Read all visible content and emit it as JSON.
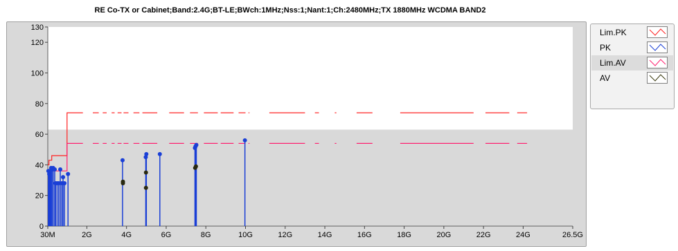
{
  "chart_data": {
    "type": "line",
    "title": "RE Co-TX or Cabinet;Band:2.4G;BT-LE;BWch:1MHz;Nss:1;Nant:1;Ch:2480MHz;TX 1880MHz WCDMA BAND2",
    "xlabel": "",
    "ylabel": "",
    "xlim": [
      0.03,
      26.5
    ],
    "ylim": [
      0,
      130
    ],
    "x_ticks": [
      {
        "value": 0.03,
        "label": "30M"
      },
      {
        "value": 2,
        "label": "2G"
      },
      {
        "value": 4,
        "label": "4G"
      },
      {
        "value": 6,
        "label": "6G"
      },
      {
        "value": 8,
        "label": "8G"
      },
      {
        "value": 10,
        "label": "10G"
      },
      {
        "value": 12,
        "label": "12G"
      },
      {
        "value": 14,
        "label": "14G"
      },
      {
        "value": 16,
        "label": "16G"
      },
      {
        "value": 18,
        "label": "18G"
      },
      {
        "value": 20,
        "label": "20G"
      },
      {
        "value": 22,
        "label": "22G"
      },
      {
        "value": 24,
        "label": "24G"
      },
      {
        "value": 26.5,
        "label": "26.5G"
      }
    ],
    "y_ticks": [
      {
        "value": 0,
        "label": "0"
      },
      {
        "value": 20,
        "label": "20"
      },
      {
        "value": 40,
        "label": "40"
      },
      {
        "value": 60,
        "label": "60"
      },
      {
        "value": 80,
        "label": "80"
      },
      {
        "value": 100,
        "label": "100"
      },
      {
        "value": 120,
        "label": "120"
      },
      {
        "value": 130,
        "label": "130"
      }
    ],
    "grid": true,
    "legend_position": "right",
    "series": [
      {
        "name": "Lim.PK",
        "color": "#ff2020",
        "style": "segments",
        "segments": [
          [
            [
              0.03,
              40
            ],
            [
              0.09,
              40
            ],
            [
              0.09,
              43
            ],
            [
              0.23,
              43
            ],
            [
              0.23,
              46
            ],
            [
              1.0,
              46
            ],
            [
              1.0,
              74
            ],
            [
              1.8,
              74
            ]
          ],
          [
            [
              2.3,
              74
            ],
            [
              2.6,
              74
            ]
          ],
          [
            [
              2.8,
              74
            ],
            [
              3.0,
              74
            ]
          ],
          [
            [
              3.25,
              74
            ],
            [
              3.4,
              74
            ]
          ],
          [
            [
              3.55,
              74
            ],
            [
              3.75,
              74
            ]
          ],
          [
            [
              3.85,
              74
            ],
            [
              4.1,
              74
            ]
          ],
          [
            [
              4.35,
              74
            ],
            [
              4.65,
              74
            ]
          ],
          [
            [
              4.8,
              74
            ],
            [
              5.55,
              74
            ]
          ],
          [
            [
              6.15,
              74
            ],
            [
              6.9,
              74
            ]
          ],
          [
            [
              7.2,
              74
            ],
            [
              7.6,
              74
            ]
          ],
          [
            [
              7.9,
              74
            ],
            [
              8.6,
              74
            ]
          ],
          [
            [
              8.75,
              74
            ],
            [
              9.4,
              74
            ]
          ],
          [
            [
              9.65,
              74
            ],
            [
              10.0,
              74
            ]
          ],
          [
            [
              10.15,
              74
            ],
            [
              10.2,
              74
            ]
          ],
          [
            [
              11.2,
              74
            ],
            [
              13.0,
              74
            ]
          ],
          [
            [
              13.5,
              74
            ],
            [
              13.7,
              74
            ]
          ],
          [
            [
              14.5,
              74
            ],
            [
              14.58,
              74
            ]
          ],
          [
            [
              15.6,
              74
            ],
            [
              16.4,
              74
            ]
          ],
          [
            [
              17.8,
              74
            ],
            [
              21.5,
              74
            ]
          ],
          [
            [
              22.1,
              74
            ],
            [
              23.3,
              74
            ]
          ],
          [
            [
              23.7,
              74
            ],
            [
              24.2,
              74
            ]
          ]
        ]
      },
      {
        "name": "Lim.AV",
        "color": "#ff2070",
        "style": "segments",
        "segments": [
          [
            [
              0.03,
              30
            ],
            [
              0.09,
              30
            ],
            [
              0.09,
              33
            ],
            [
              0.23,
              33
            ],
            [
              0.23,
              36
            ],
            [
              1.0,
              36
            ],
            [
              1.0,
              54
            ],
            [
              1.8,
              54
            ]
          ],
          [
            [
              2.3,
              54
            ],
            [
              2.6,
              54
            ]
          ],
          [
            [
              2.8,
              54
            ],
            [
              3.0,
              54
            ]
          ],
          [
            [
              3.25,
              54
            ],
            [
              3.4,
              54
            ]
          ],
          [
            [
              3.55,
              54
            ],
            [
              3.75,
              54
            ]
          ],
          [
            [
              3.85,
              54
            ],
            [
              4.1,
              54
            ]
          ],
          [
            [
              4.35,
              54
            ],
            [
              4.65,
              54
            ]
          ],
          [
            [
              4.8,
              54
            ],
            [
              5.55,
              54
            ]
          ],
          [
            [
              6.15,
              54
            ],
            [
              6.9,
              54
            ]
          ],
          [
            [
              7.2,
              54
            ],
            [
              7.6,
              54
            ]
          ],
          [
            [
              7.9,
              54
            ],
            [
              8.6,
              54
            ]
          ],
          [
            [
              8.75,
              54
            ],
            [
              9.4,
              54
            ]
          ],
          [
            [
              9.65,
              54
            ],
            [
              10.0,
              54
            ]
          ],
          [
            [
              10.15,
              54
            ],
            [
              10.2,
              54
            ]
          ],
          [
            [
              11.2,
              54
            ],
            [
              13.0,
              54
            ]
          ],
          [
            [
              13.5,
              54
            ],
            [
              13.7,
              54
            ]
          ],
          [
            [
              14.5,
              54
            ],
            [
              14.58,
              54
            ]
          ],
          [
            [
              15.6,
              54
            ],
            [
              16.4,
              54
            ]
          ],
          [
            [
              17.8,
              54
            ],
            [
              21.5,
              54
            ]
          ],
          [
            [
              22.1,
              54
            ],
            [
              23.3,
              54
            ]
          ],
          [
            [
              23.7,
              54
            ],
            [
              24.2,
              54
            ]
          ]
        ]
      },
      {
        "name": "PK",
        "color": "#1a3fd6",
        "style": "stem",
        "points": [
          {
            "x": 0.06,
            "y": 36
          },
          {
            "x": 0.1,
            "y": 34
          },
          {
            "x": 0.13,
            "y": 33
          },
          {
            "x": 0.16,
            "y": 36
          },
          {
            "x": 0.2,
            "y": 38
          },
          {
            "x": 0.24,
            "y": 37
          },
          {
            "x": 0.3,
            "y": 38
          },
          {
            "x": 0.38,
            "y": 37
          },
          {
            "x": 0.42,
            "y": 28
          },
          {
            "x": 0.5,
            "y": 28
          },
          {
            "x": 0.58,
            "y": 28
          },
          {
            "x": 0.66,
            "y": 37
          },
          {
            "x": 0.74,
            "y": 28
          },
          {
            "x": 0.8,
            "y": 32
          },
          {
            "x": 0.87,
            "y": 28
          },
          {
            "x": 1.05,
            "y": 34
          },
          {
            "x": 3.8,
            "y": 43
          },
          {
            "x": 4.97,
            "y": 45
          },
          {
            "x": 5.0,
            "y": 47
          },
          {
            "x": 5.68,
            "y": 47
          },
          {
            "x": 7.45,
            "y": 51
          },
          {
            "x": 7.48,
            "y": 52
          },
          {
            "x": 7.52,
            "y": 53
          },
          {
            "x": 9.97,
            "y": 56
          }
        ]
      },
      {
        "name": "AV",
        "color": "#2a2a10",
        "style": "markers",
        "points": [
          {
            "x": 3.82,
            "y": 29
          },
          {
            "x": 3.82,
            "y": 28
          },
          {
            "x": 4.98,
            "y": 35
          },
          {
            "x": 4.98,
            "y": 25
          },
          {
            "x": 7.46,
            "y": 38
          },
          {
            "x": 7.5,
            "y": 39
          }
        ]
      }
    ]
  },
  "legend": {
    "items": [
      {
        "label": "Lim.PK",
        "color": "#ff2020"
      },
      {
        "label": "PK",
        "color": "#1a3fd6"
      },
      {
        "label": "Lim.AV",
        "color": "#ff2070"
      },
      {
        "label": "AV",
        "color": "#3a3a10"
      }
    ]
  }
}
